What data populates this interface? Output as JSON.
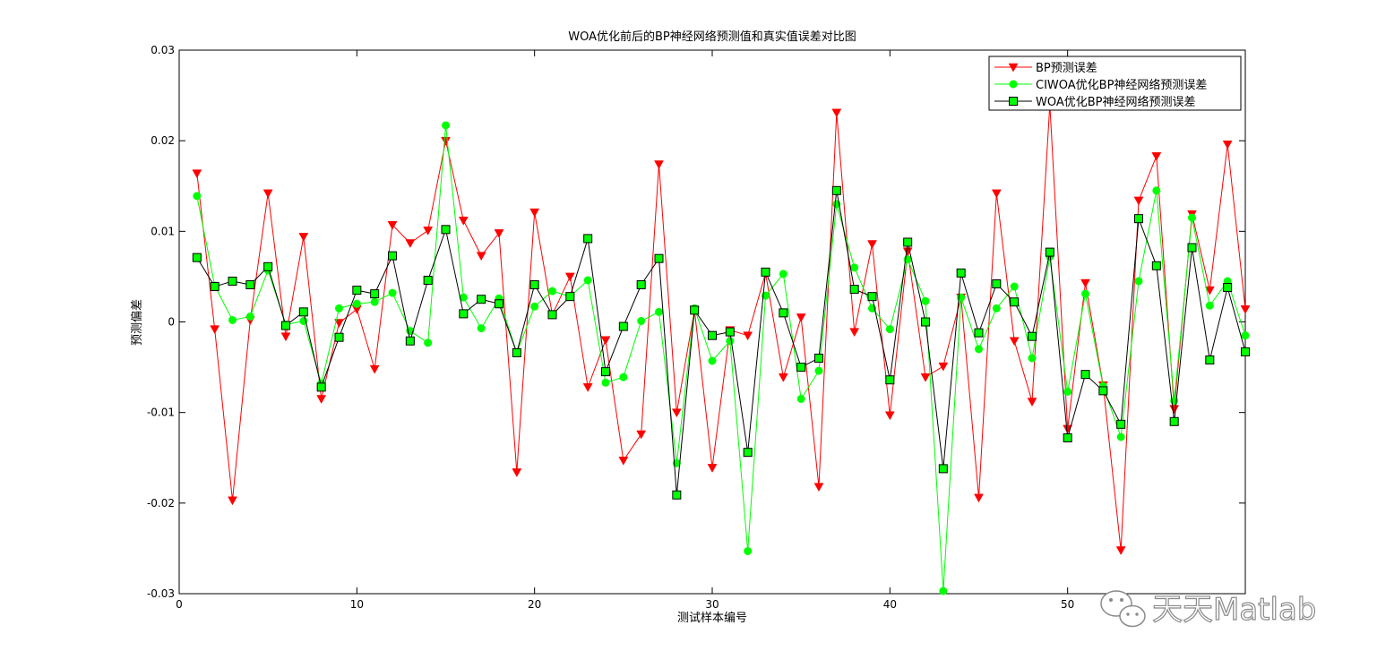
{
  "chart_data": {
    "type": "line",
    "title": "WOA优化前后的BP神经网络预测值和真实值误差对比图",
    "xlabel": "测试样本编号",
    "ylabel": "预测偏差",
    "xlim": [
      0,
      60
    ],
    "ylim": [
      -0.03,
      0.03
    ],
    "xticks": [
      0,
      10,
      20,
      30,
      40,
      50
    ],
    "yticks": [
      -0.03,
      -0.02,
      -0.01,
      0,
      0.01,
      0.02,
      0.03
    ],
    "ytick_labels": [
      "-0.03",
      "-0.02",
      "-0.01",
      "0",
      "0.01",
      "0.02",
      "0.03"
    ],
    "grid": false,
    "legend_position": "top-right",
    "x": [
      1,
      2,
      3,
      4,
      5,
      6,
      7,
      8,
      9,
      10,
      11,
      12,
      13,
      14,
      15,
      16,
      17,
      18,
      19,
      20,
      21,
      22,
      23,
      24,
      25,
      26,
      27,
      28,
      29,
      30,
      31,
      32,
      33,
      34,
      35,
      36,
      37,
      38,
      39,
      40,
      41,
      42,
      43,
      44,
      45,
      46,
      47,
      48,
      49,
      50,
      51,
      52,
      53,
      54,
      55,
      56,
      57,
      58,
      59,
      60
    ],
    "series": [
      {
        "name": "BP预测误差",
        "color": "#ff0000",
        "marker": "triangle-down",
        "values": [
          0.0164,
          -0.0008,
          -0.0197,
          0.0002,
          0.0142,
          -0.0016,
          0.0094,
          -0.0085,
          -0.0001,
          0.0014,
          -0.0052,
          0.0107,
          0.0087,
          0.0101,
          0.02,
          0.0112,
          0.0073,
          0.0098,
          -0.0166,
          0.0121,
          0.0008,
          0.005,
          -0.0072,
          -0.002,
          -0.0153,
          -0.0124,
          0.0174,
          -0.01,
          0.0013,
          -0.0161,
          -0.0009,
          -0.0015,
          0.0054,
          -0.0061,
          0.0005,
          -0.0182,
          0.0231,
          -0.0011,
          0.0086,
          -0.0103,
          0.0078,
          -0.0061,
          -0.0049,
          0.0027,
          -0.0194,
          0.0142,
          -0.0021,
          -0.0088,
          0.024,
          -0.0118,
          0.0043,
          -0.007,
          -0.0252,
          0.0134,
          0.0183,
          -0.0096,
          0.0119,
          0.0035,
          0.0196,
          0.0014
        ]
      },
      {
        "name": "CIWOA优化BP神经网络预测误差",
        "color": "#00ff00",
        "marker": "circle",
        "values": [
          0.0139,
          0.004,
          0.0002,
          0.0006,
          0.0057,
          -0.0003,
          0.0001,
          -0.0068,
          0.0015,
          0.002,
          0.0022,
          0.0032,
          -0.001,
          -0.0023,
          0.0217,
          0.0027,
          -0.0007,
          0.0026,
          -0.0034,
          0.0017,
          0.0034,
          0.0028,
          0.0046,
          -0.0067,
          -0.0061,
          0.0001,
          0.0011,
          -0.0156,
          0.0015,
          -0.0043,
          -0.0021,
          -0.0253,
          0.0029,
          0.0053,
          -0.0085,
          -0.0054,
          0.013,
          0.006,
          0.0015,
          -0.0008,
          0.0069,
          0.0023,
          -0.0297,
          0.0027,
          -0.003,
          0.0015,
          0.0039,
          -0.004,
          0.0072,
          -0.0077,
          0.0031,
          -0.0071,
          -0.0127,
          0.0045,
          0.0145,
          -0.0087,
          0.0115,
          0.0018,
          0.0045,
          -0.0015
        ]
      },
      {
        "name": "WOA优化BP神经网络预测误差",
        "color": "#000000",
        "marker": "square",
        "marker_fill": "#00ff00",
        "values": [
          0.0071,
          0.0039,
          0.0045,
          0.0041,
          0.0061,
          -0.0004,
          0.0011,
          -0.0072,
          -0.0017,
          0.0035,
          0.0031,
          0.0073,
          -0.0021,
          0.0046,
          0.0102,
          0.0009,
          0.0025,
          0.002,
          -0.0034,
          0.0041,
          0.0008,
          0.0028,
          0.0092,
          -0.0055,
          -0.0005,
          0.0041,
          0.007,
          -0.0191,
          0.0013,
          -0.0015,
          -0.0011,
          -0.0144,
          0.0055,
          0.001,
          -0.005,
          -0.004,
          0.0145,
          0.0036,
          0.0028,
          -0.0064,
          0.0088,
          0.0,
          -0.0162,
          0.0054,
          -0.0012,
          0.0042,
          0.0022,
          -0.0016,
          0.0077,
          -0.0128,
          -0.0058,
          -0.0076,
          -0.0113,
          0.0114,
          0.0062,
          -0.011,
          0.0082,
          -0.0042,
          0.0038,
          -0.0033
        ]
      }
    ]
  },
  "watermark": {
    "text": "天天Matlab",
    "icon": "wechat-logo-icon"
  }
}
